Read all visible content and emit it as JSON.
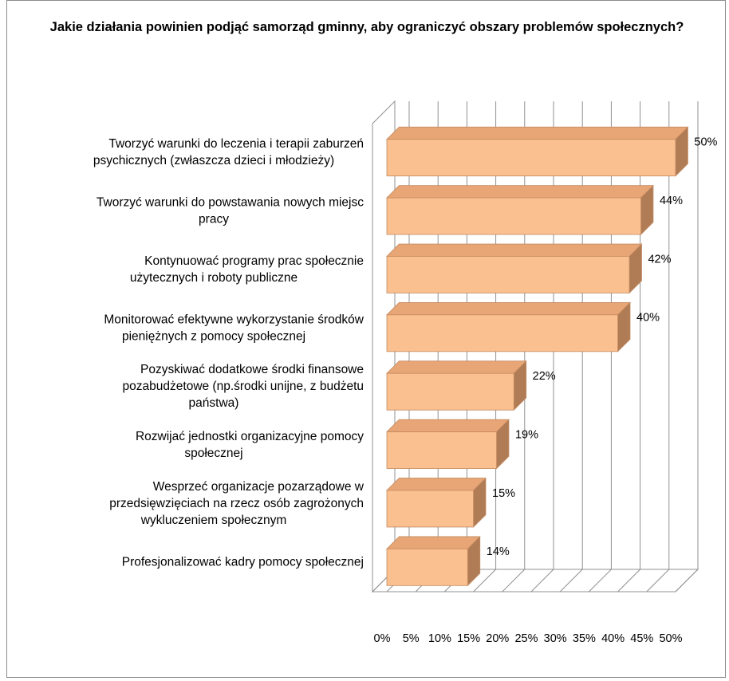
{
  "chart_data": {
    "type": "bar",
    "orientation": "horizontal",
    "three_d": true,
    "title": "Jakie działania  powinien podjąć samorząd gminny, aby ograniczyć obszary problemów społecznych?",
    "categories": [
      [
        "Tworzyć warunki do leczenia i terapii zaburzeń",
        "psychicznych (zwłaszcza dzieci i młodzieży)"
      ],
      [
        "Tworzyć warunki do powstawania nowych miejsc",
        "pracy"
      ],
      [
        "Kontynuować programy prac społecznie",
        "użytecznych i roboty publiczne"
      ],
      [
        "Monitorować efektywne wykorzystanie środków",
        "pieniężnych z pomocy społecznej"
      ],
      [
        "Pozyskiwać dodatkowe środki finansowe",
        "pozabudżetowe (np.środki unijne, z budżetu",
        "państwa)"
      ],
      [
        "Rozwijać jednostki organizacyjne pomocy",
        "społecznej"
      ],
      [
        "Wesprzeć organizacje pozarządowe w",
        "przedsięwzięciach na rzecz osób zagrożonych",
        "wykluczeniem społecznym"
      ],
      [
        "Profesjonalizować kadry pomocy społecznej"
      ]
    ],
    "values": [
      50,
      44,
      42,
      40,
      22,
      19,
      15,
      14
    ],
    "value_labels": [
      "50%",
      "44%",
      "42%",
      "40%",
      "22%",
      "19%",
      "15%",
      "14%"
    ],
    "xlim": [
      0,
      50
    ],
    "x_ticks": [
      0,
      5,
      10,
      15,
      20,
      25,
      30,
      35,
      40,
      45,
      50
    ],
    "x_tick_labels": [
      "0%",
      "5%",
      "10%",
      "15%",
      "20%",
      "25%",
      "30%",
      "35%",
      "40%",
      "45%",
      "50%"
    ],
    "grid": true,
    "legend": "none",
    "colors": {
      "bar_front": "#fac090",
      "bar_top": "#e8a676",
      "bar_side": "#b07c56",
      "bar_edge": "#c58a5f",
      "grid": "#909090"
    }
  }
}
